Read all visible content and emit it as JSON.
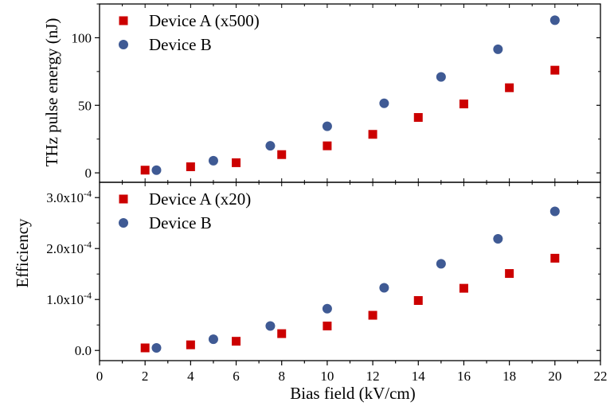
{
  "chart_data": [
    {
      "type": "scatter",
      "title": "",
      "xlabel": "Bias field (kV/cm)",
      "ylabel": "THz pulse energy (nJ)",
      "xlim": [
        0,
        22
      ],
      "ylim": [
        -7,
        125
      ],
      "x_ticks": [
        "0",
        "2",
        "4",
        "6",
        "8",
        "10",
        "12",
        "14",
        "16",
        "18",
        "20",
        "22"
      ],
      "y_ticks": [
        "0",
        "50",
        "100"
      ],
      "y_tick_values": [
        0,
        50,
        100
      ],
      "grid": false,
      "legend_position": "top-left",
      "series": [
        {
          "name": "Device A (x500)",
          "marker": "square",
          "color": "#cc0000",
          "x": [
            2,
            4,
            6,
            8,
            10,
            12,
            14,
            16,
            18,
            20
          ],
          "y": [
            2,
            4.5,
            7.5,
            13.5,
            20,
            28.5,
            41,
            51,
            63,
            76
          ]
        },
        {
          "name": "Device B",
          "marker": "circle",
          "color": "#3f5a94",
          "x": [
            2.5,
            5,
            7.5,
            10,
            12.5,
            15,
            17.5,
            20
          ],
          "y": [
            2,
            9,
            20,
            34.5,
            51.5,
            71,
            91.5,
            113
          ]
        }
      ]
    },
    {
      "type": "scatter",
      "title": "",
      "xlabel": "Bias field (kV/cm)",
      "ylabel": "Efficiency",
      "xlim": [
        0,
        22
      ],
      "ylim": [
        -2e-05,
        0.00033
      ],
      "x_ticks": [
        "0",
        "2",
        "4",
        "6",
        "8",
        "10",
        "12",
        "14",
        "16",
        "18",
        "20",
        "22"
      ],
      "y_ticks": [
        {
          "mantissa": "0.0",
          "exp": ""
        },
        {
          "mantissa": "1.0x10",
          "exp": "-4"
        },
        {
          "mantissa": "2.0x10",
          "exp": "-4"
        },
        {
          "mantissa": "3.0x10",
          "exp": "-4"
        }
      ],
      "y_tick_values": [
        0,
        0.0001,
        0.0002,
        0.0003
      ],
      "grid": false,
      "legend_position": "top-left",
      "series": [
        {
          "name": "Device A (x20)",
          "marker": "square",
          "color": "#cc0000",
          "x": [
            2,
            4,
            6,
            8,
            10,
            12,
            14,
            16,
            18,
            20
          ],
          "y": [
            5e-06,
            1.1e-05,
            1.8e-05,
            3.3e-05,
            4.8e-05,
            6.9e-05,
            9.8e-05,
            0.000122,
            0.000151,
            0.000181
          ]
        },
        {
          "name": "Device B",
          "marker": "circle",
          "color": "#3f5a94",
          "x": [
            2.5,
            5,
            7.5,
            10,
            12.5,
            15,
            17.5,
            20
          ],
          "y": [
            5e-06,
            2.2e-05,
            4.8e-05,
            8.2e-05,
            0.000123,
            0.00017,
            0.000219,
            0.000273
          ]
        }
      ]
    }
  ]
}
